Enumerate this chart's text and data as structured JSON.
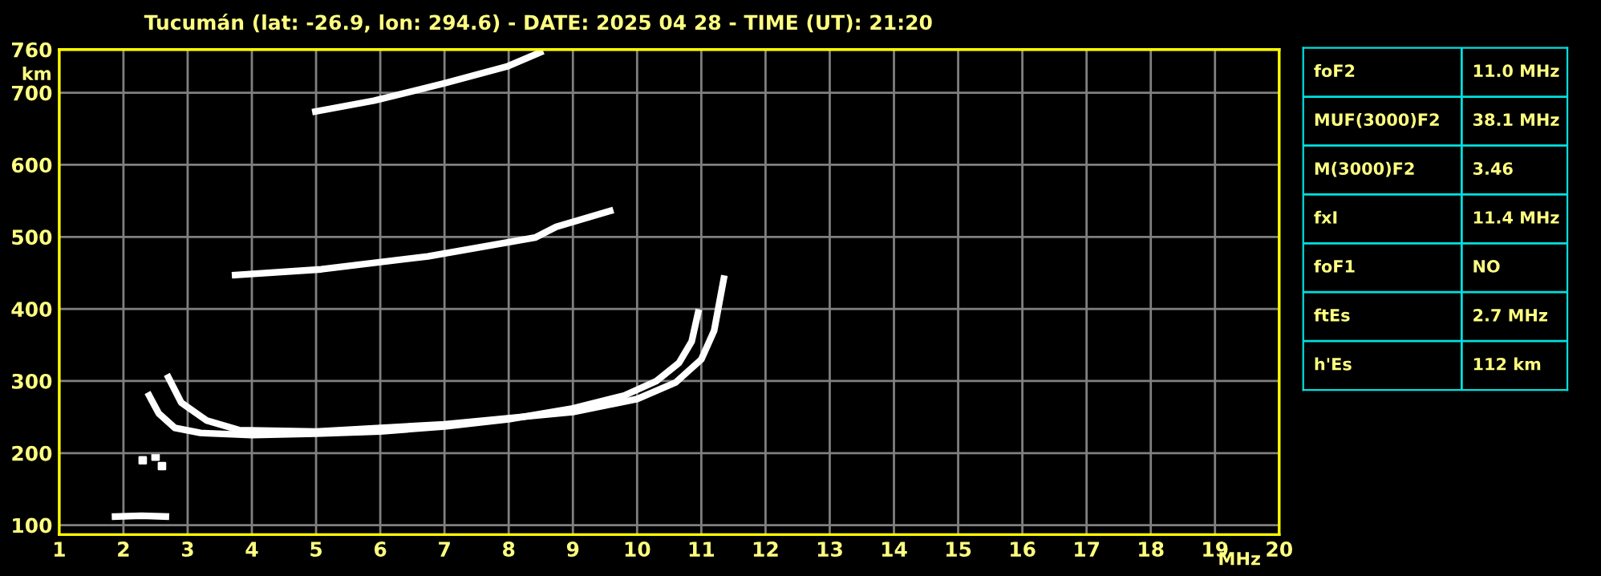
{
  "chart_data": [
    {
      "type": "line",
      "title": "Tucumán (lat: -26.9, lon: 294.6) - DATE: 2025 04 28 - TIME (UT): 21:20",
      "xlabel": "MHz",
      "ylabel": "km",
      "xlim": [
        1,
        20
      ],
      "ylim": [
        87,
        760
      ],
      "xticks": [
        1,
        2,
        3,
        4,
        5,
        6,
        7,
        8,
        9,
        10,
        11,
        12,
        13,
        14,
        15,
        16,
        17,
        18,
        19,
        20
      ],
      "yticks": [
        100,
        200,
        300,
        400,
        500,
        600,
        700,
        760
      ],
      "grid": true,
      "marker": "none",
      "line_style": "solid",
      "series": [
        {
          "color": "#ffffff",
          "x": [
            2.4,
            2.55,
            2.8,
            3.2,
            4,
            5,
            6,
            7,
            8,
            9,
            9.8,
            10.3,
            10.65,
            10.85,
            10.95
          ],
          "values": [
            280,
            255,
            235,
            228,
            225,
            227,
            230,
            237,
            247,
            262,
            280,
            300,
            325,
            355,
            395
          ]
        },
        {
          "color": "#ffffff",
          "x": [
            2.7,
            2.9,
            3.3,
            3.8,
            5,
            7,
            9,
            10,
            10.6,
            11.0,
            11.2,
            11.35
          ],
          "values": [
            305,
            270,
            245,
            232,
            230,
            240,
            257,
            275,
            298,
            330,
            370,
            442
          ]
        },
        {
          "color": "#ffffff",
          "x": [
            3.74,
            5.08,
            6.74,
            8.41,
            8.74,
            9.58
          ],
          "values": [
            447,
            455,
            473,
            499,
            514,
            536
          ]
        },
        {
          "color": "#ffffff",
          "x": [
            4.99,
            5.9,
            6.99,
            7.99,
            8.49
          ],
          "values": [
            674,
            689,
            713,
            737,
            756
          ]
        },
        {
          "color": "#ffffff",
          "x": [
            1.87,
            2.28,
            2.66
          ],
          "values": [
            112,
            113,
            112
          ]
        },
        {
          "type": "scatter",
          "marker": "square",
          "color": "#ffffff",
          "x": [
            2.3,
            2.5,
            2.6
          ],
          "values": [
            190,
            195,
            182
          ]
        }
      ]
    },
    {
      "type": "other",
      "annotations": [
        "foF2",
        "11.0 MHz",
        "MUF(3000)F2",
        "38.1 MHz",
        "M(3000)F2",
        "3.46",
        "fxI",
        "11.4 MHz",
        "foF1",
        "NO",
        "ftEs",
        "2.7 MHz",
        "h'Es",
        "112 km"
      ]
    }
  ]
}
